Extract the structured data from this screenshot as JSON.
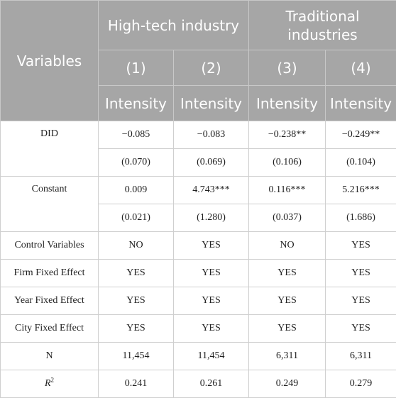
{
  "header": {
    "variables": "Variables",
    "group1": "High-tech industry",
    "group2": "Traditional industries",
    "col_numbers": [
      "(1)",
      "(2)",
      "(3)",
      "(4)"
    ],
    "col_labels": [
      "Intensity",
      "Intensity",
      "Intensity",
      "Intensity"
    ]
  },
  "rows": {
    "did_label": "DID",
    "did_coef": [
      "−0.085",
      "−0.083",
      "−0.238**",
      "−0.249**"
    ],
    "did_se": [
      "(0.070)",
      "(0.069)",
      "(0.106)",
      "(0.104)"
    ],
    "const_label": "Constant",
    "const_coef": [
      "0.009",
      "4.743***",
      "0.116***",
      "5.216***"
    ],
    "const_se": [
      "(0.021)",
      "(1.280)",
      "(0.037)",
      "(1.686)"
    ],
    "control_label": "Control Variables",
    "control": [
      "NO",
      "YES",
      "NO",
      "YES"
    ],
    "firm_label": "Firm Fixed Effect",
    "firm": [
      "YES",
      "YES",
      "YES",
      "YES"
    ],
    "year_label": "Year Fixed Effect",
    "year": [
      "YES",
      "YES",
      "YES",
      "YES"
    ],
    "city_label": "City Fixed Effect",
    "city": [
      "YES",
      "YES",
      "YES",
      "YES"
    ],
    "n_label": "N",
    "n": [
      "11,454",
      "11,454",
      "6,311",
      "6,311"
    ],
    "r2_label": "R",
    "r2_sup": "2",
    "r2": [
      "0.241",
      "0.261",
      "0.249",
      "0.279"
    ]
  }
}
